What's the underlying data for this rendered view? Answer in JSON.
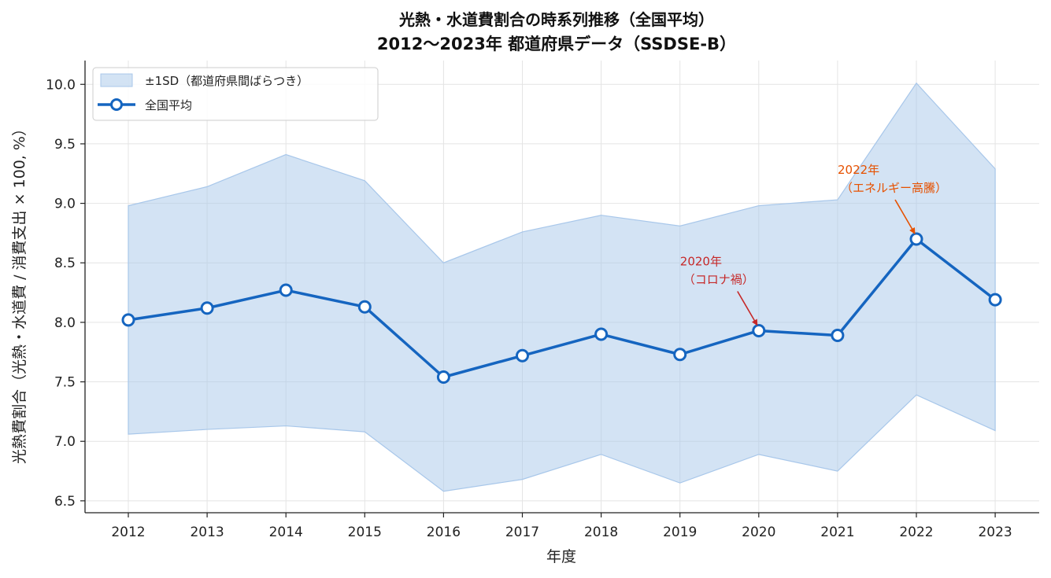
{
  "chart_data": {
    "type": "line",
    "title": "光熱・水道費割合の時系列推移（全国平均）",
    "subtitle": "2012〜2023年 都道府県データ（SSDSE-B）",
    "xlabel": "年度",
    "ylabel": "光熱費割合（光熱・水道費 / 消費支出 × 100, %）",
    "x": [
      2012,
      2013,
      2014,
      2015,
      2016,
      2017,
      2018,
      2019,
      2020,
      2021,
      2022,
      2023
    ],
    "x_tick_labels": [
      "2012",
      "2013",
      "2014",
      "2015",
      "2016",
      "2017",
      "2018",
      "2019",
      "2020",
      "2021",
      "2022",
      "2023"
    ],
    "ylim": [
      6.4,
      10.2
    ],
    "yticks": [
      6.5,
      7.0,
      7.5,
      8.0,
      8.5,
      9.0,
      9.5,
      10.0
    ],
    "y_tick_labels": [
      "6.5",
      "7.0",
      "7.5",
      "8.0",
      "8.5",
      "9.0",
      "9.5",
      "10.0"
    ],
    "grid": true,
    "legend_position": "top-left",
    "series": [
      {
        "name": "全国平均",
        "type": "line",
        "color": "#1565c0",
        "values": [
          8.02,
          8.12,
          8.27,
          8.13,
          7.54,
          7.72,
          7.9,
          7.73,
          7.93,
          7.89,
          8.7,
          8.19
        ]
      },
      {
        "name": "±1SD（都道府県間ばらつき）",
        "type": "band",
        "color": "#a8c7ea",
        "upper": [
          8.98,
          9.14,
          9.41,
          9.19,
          8.5,
          8.76,
          8.9,
          8.81,
          8.98,
          9.03,
          10.01,
          9.29
        ],
        "lower": [
          7.06,
          7.1,
          7.13,
          7.08,
          6.58,
          6.68,
          6.89,
          6.65,
          6.89,
          6.75,
          7.39,
          7.09
        ]
      }
    ],
    "annotations": [
      {
        "x": 2020,
        "y": 7.93,
        "line1": "2020年",
        "line2": "（コロナ禍）",
        "color": "#c62828"
      },
      {
        "x": 2022,
        "y": 8.7,
        "line1": "2022年",
        "line2": "（エネルギー高騰）",
        "color": "#e65100"
      }
    ]
  }
}
